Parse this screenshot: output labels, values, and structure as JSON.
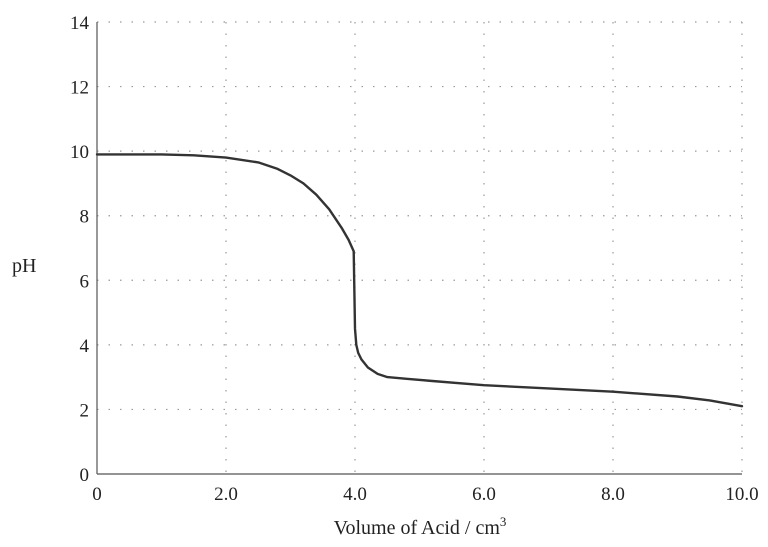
{
  "chart_data": {
    "type": "line",
    "title": "",
    "xlabel": "Volume of Acid / cm",
    "xlabel_superscript": "3",
    "ylabel": "pH",
    "xlim": [
      0,
      10
    ],
    "ylim": [
      0,
      14
    ],
    "x_ticks": [
      "0",
      "2.0",
      "4.0",
      "6.0",
      "8.0",
      "10.0"
    ],
    "x_tick_values": [
      0,
      2,
      4,
      6,
      8,
      10
    ],
    "y_ticks": [
      "0",
      "2",
      "4",
      "6",
      "8",
      "10",
      "12",
      "14"
    ],
    "y_tick_values": [
      0,
      2,
      4,
      6,
      8,
      10,
      12,
      14
    ],
    "grid": true,
    "grid_style": "dotted",
    "line_color": "#333333",
    "series": [
      {
        "x": [
          0,
          0.5,
          1.0,
          1.5,
          2.0,
          2.5,
          2.8,
          3.0,
          3.2,
          3.4,
          3.6,
          3.8,
          3.9,
          3.98,
          4.0,
          4.02,
          4.05,
          4.1,
          4.2,
          4.35,
          4.5,
          4.8,
          5.2,
          6.0,
          7.0,
          8.0,
          9.0,
          9.5,
          10.0
        ],
        "y": [
          9.9,
          9.9,
          9.9,
          9.87,
          9.8,
          9.65,
          9.45,
          9.25,
          9.0,
          8.65,
          8.2,
          7.6,
          7.25,
          6.9,
          4.5,
          4.0,
          3.75,
          3.55,
          3.3,
          3.1,
          3.0,
          2.95,
          2.88,
          2.75,
          2.65,
          2.55,
          2.4,
          2.28,
          2.1
        ]
      }
    ]
  }
}
